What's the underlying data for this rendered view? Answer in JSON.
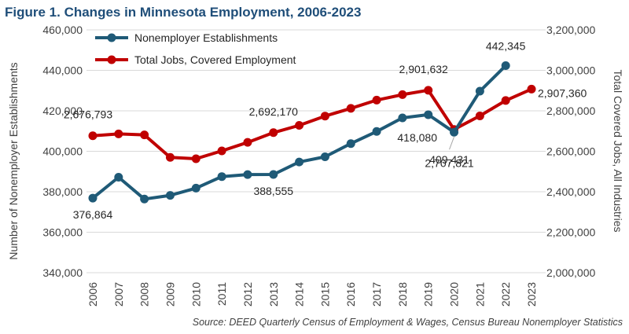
{
  "title": "Figure 1. Changes in Minnesota Employment, 2006-2023",
  "source": "Source: DEED Quarterly Census of Employment & Wages, Census Bureau Nonemployer Statistics",
  "colors": {
    "nonemployer": "#1f5a77",
    "total_jobs": "#c00000",
    "title": "#1f4e79"
  },
  "chart_data": {
    "type": "line",
    "title": "Figure 1. Changes in Minnesota Employment, 2006-2023",
    "categories": [
      "2006",
      "2007",
      "2008",
      "2009",
      "2010",
      "2011",
      "2012",
      "2013",
      "2014",
      "2015",
      "2016",
      "2017",
      "2018",
      "2019",
      "2020",
      "2021",
      "2022",
      "2023"
    ],
    "left_axis": {
      "label": "Number of Nonemployer Establishments",
      "range": [
        340000,
        460000
      ],
      "ticks": [
        "340,000",
        "360,000",
        "380,000",
        "400,000",
        "420,000",
        "440,000",
        "460,000"
      ]
    },
    "right_axis": {
      "label": "Total Covered Jobs, All Industries",
      "range": [
        2000000,
        3200000
      ],
      "ticks": [
        "2,000,000",
        "2,200,000",
        "2,400,000",
        "2,600,000",
        "2,800,000",
        "3,000,000",
        "3,200,000"
      ]
    },
    "legend_position": "top-left",
    "grid": true,
    "series": [
      {
        "name": "Nonemployer Establishments",
        "axis": "left",
        "values": [
          376864,
          387200,
          376400,
          378200,
          381800,
          387500,
          388500,
          388555,
          394700,
          397300,
          403800,
          409800,
          416500,
          418080,
          409431,
          429700,
          442345,
          null
        ],
        "labels": [
          {
            "index": 0,
            "text": "376,864"
          },
          {
            "index": 7,
            "text": "388,555"
          },
          {
            "index": 13,
            "text": "418,080"
          },
          {
            "index": 14,
            "text": "409,431"
          },
          {
            "index": 16,
            "text": "442,345"
          }
        ]
      },
      {
        "name": "Total Jobs, Covered Employment",
        "axis": "right",
        "values": [
          2676793,
          2686000,
          2681000,
          2570000,
          2563000,
          2602000,
          2644000,
          2692170,
          2728000,
          2774000,
          2812000,
          2853000,
          2880000,
          2901632,
          2707821,
          2775000,
          2851000,
          2907360
        ],
        "labels": [
          {
            "index": 0,
            "text": "2,676,793"
          },
          {
            "index": 7,
            "text": "2,692,170"
          },
          {
            "index": 13,
            "text": "2,901,632"
          },
          {
            "index": 14,
            "text": "2,707,821"
          },
          {
            "index": 17,
            "text": "2,907,360"
          }
        ]
      }
    ]
  }
}
